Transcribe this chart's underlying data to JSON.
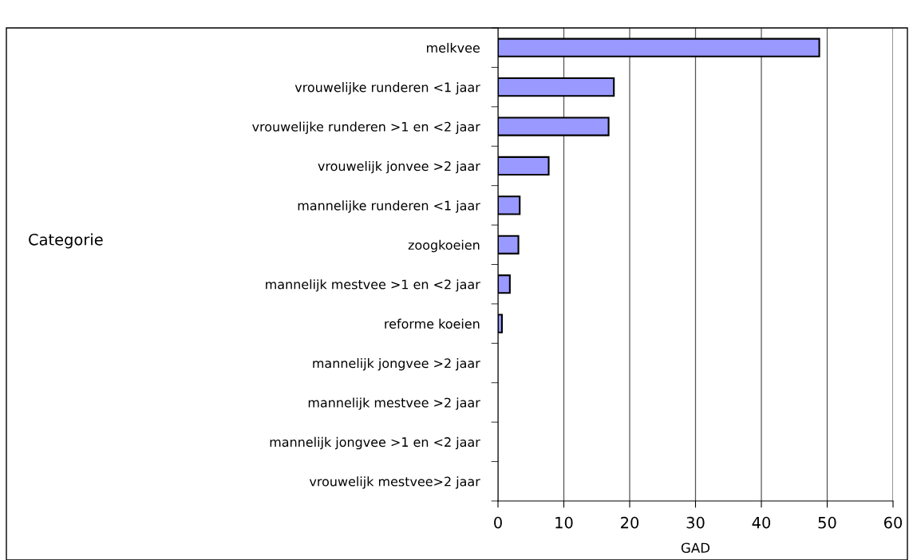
{
  "chart_data": {
    "type": "bar",
    "orientation": "horizontal",
    "xlabel": "GAD",
    "annotations": [
      "Categorie"
    ],
    "categories": [
      "melkvee",
      "vrouwelijke runderen <1 jaar",
      "vrouwelijke runderen >1 en <2 jaar",
      "vrouwelijk jonvee >2 jaar",
      "mannelijke runderen <1 jaar",
      "zoogkoeien",
      "mannelijk mestvee >1 en <2 jaar",
      "reforme koeien",
      "mannelijk jongvee >2 jaar",
      "mannelijk mestvee >2 jaar",
      "mannelijk jongvee >1 en <2 jaar",
      "vrouwelijk mestvee>2 jaar"
    ],
    "values": [
      48.8,
      17.6,
      16.8,
      7.7,
      3.3,
      3.1,
      1.8,
      0.6,
      0,
      0,
      0,
      0
    ],
    "color": "#9999ff",
    "xlim": [
      0,
      60
    ],
    "xticks": [
      0,
      10,
      20,
      30,
      40,
      50,
      60
    ],
    "grid": "x",
    "legend": false
  }
}
